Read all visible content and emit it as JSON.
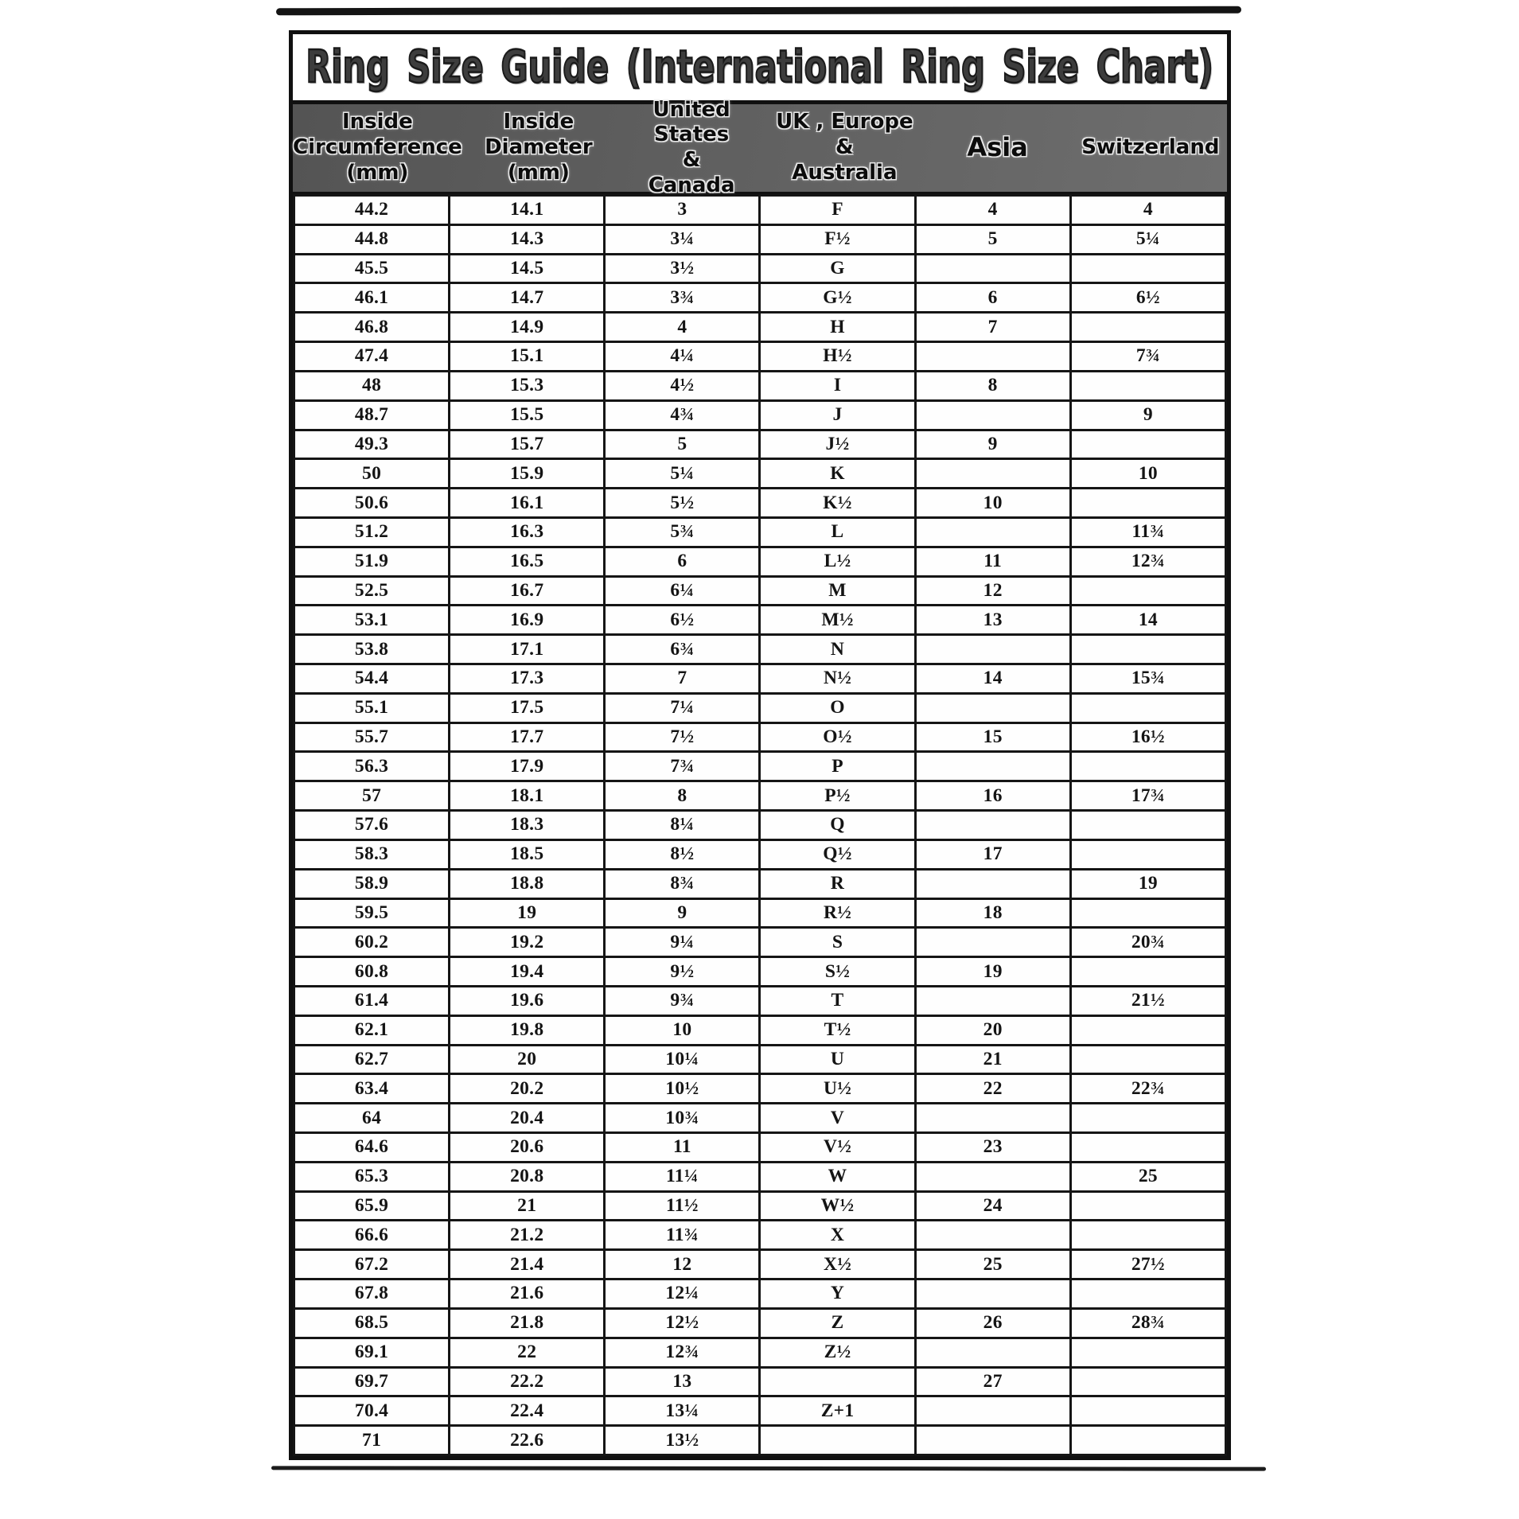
{
  "title": "Ring Size Guide (International Ring Size Chart)",
  "colors": {
    "header_bg": "#616161",
    "border": "#101010",
    "text": "#141414",
    "page_bg": "#ffffff"
  },
  "table": {
    "headers": [
      "Inside\nCircumference\n(mm)",
      "Inside\nDiameter\n(mm)",
      "United States\n&\nCanada",
      "UK , Europe\n&\nAustralia",
      "Asia",
      "Switzerland"
    ],
    "rows": [
      [
        "44.2",
        "14.1",
        "3",
        "F",
        "4",
        "4"
      ],
      [
        "44.8",
        "14.3",
        "3¼",
        "F½",
        "5",
        "5¼"
      ],
      [
        "45.5",
        "14.5",
        "3½",
        "G",
        "",
        ""
      ],
      [
        "46.1",
        "14.7",
        "3¾",
        "G½",
        "6",
        "6½"
      ],
      [
        "46.8",
        "14.9",
        "4",
        "H",
        "7",
        ""
      ],
      [
        "47.4",
        "15.1",
        "4¼",
        "H½",
        "",
        "7¾"
      ],
      [
        "48",
        "15.3",
        "4½",
        "I",
        "8",
        ""
      ],
      [
        "48.7",
        "15.5",
        "4¾",
        "J",
        "",
        "9"
      ],
      [
        "49.3",
        "15.7",
        "5",
        "J½",
        "9",
        ""
      ],
      [
        "50",
        "15.9",
        "5¼",
        "K",
        "",
        "10"
      ],
      [
        "50.6",
        "16.1",
        "5½",
        "K½",
        "10",
        ""
      ],
      [
        "51.2",
        "16.3",
        "5¾",
        "L",
        "",
        "11¾"
      ],
      [
        "51.9",
        "16.5",
        "6",
        "L½",
        "11",
        "12¾"
      ],
      [
        "52.5",
        "16.7",
        "6¼",
        "M",
        "12",
        ""
      ],
      [
        "53.1",
        "16.9",
        "6½",
        "M½",
        "13",
        "14"
      ],
      [
        "53.8",
        "17.1",
        "6¾",
        "N",
        "",
        ""
      ],
      [
        "54.4",
        "17.3",
        "7",
        "N½",
        "14",
        "15¾"
      ],
      [
        "55.1",
        "17.5",
        "7¼",
        "O",
        "",
        ""
      ],
      [
        "55.7",
        "17.7",
        "7½",
        "O½",
        "15",
        "16½"
      ],
      [
        "56.3",
        "17.9",
        "7¾",
        "P",
        "",
        ""
      ],
      [
        "57",
        "18.1",
        "8",
        "P½",
        "16",
        "17¾"
      ],
      [
        "57.6",
        "18.3",
        "8¼",
        "Q",
        "",
        ""
      ],
      [
        "58.3",
        "18.5",
        "8½",
        "Q½",
        "17",
        ""
      ],
      [
        "58.9",
        "18.8",
        "8¾",
        "R",
        "",
        "19"
      ],
      [
        "59.5",
        "19",
        "9",
        "R½",
        "18",
        ""
      ],
      [
        "60.2",
        "19.2",
        "9¼",
        "S",
        "",
        "20¾"
      ],
      [
        "60.8",
        "19.4",
        "9½",
        "S½",
        "19",
        ""
      ],
      [
        "61.4",
        "19.6",
        "9¾",
        "T",
        "",
        "21½"
      ],
      [
        "62.1",
        "19.8",
        "10",
        "T½",
        "20",
        ""
      ],
      [
        "62.7",
        "20",
        "10¼",
        "U",
        "21",
        ""
      ],
      [
        "63.4",
        "20.2",
        "10½",
        "U½",
        "22",
        "22¾"
      ],
      [
        "64",
        "20.4",
        "10¾",
        "V",
        "",
        ""
      ],
      [
        "64.6",
        "20.6",
        "11",
        "V½",
        "23",
        ""
      ],
      [
        "65.3",
        "20.8",
        "11¼",
        "W",
        "",
        "25"
      ],
      [
        "65.9",
        "21",
        "11½",
        "W½",
        "24",
        ""
      ],
      [
        "66.6",
        "21.2",
        "11¾",
        "X",
        "",
        ""
      ],
      [
        "67.2",
        "21.4",
        "12",
        "X½",
        "25",
        "27½"
      ],
      [
        "67.8",
        "21.6",
        "12¼",
        "Y",
        "",
        ""
      ],
      [
        "68.5",
        "21.8",
        "12½",
        "Z",
        "26",
        "28¾"
      ],
      [
        "69.1",
        "22",
        "12¾",
        "Z½",
        "",
        ""
      ],
      [
        "69.7",
        "22.2",
        "13",
        "",
        "27",
        ""
      ],
      [
        "70.4",
        "22.4",
        "13¼",
        "Z+1",
        "",
        ""
      ],
      [
        "71",
        "22.6",
        "13½",
        "",
        "",
        ""
      ]
    ]
  }
}
